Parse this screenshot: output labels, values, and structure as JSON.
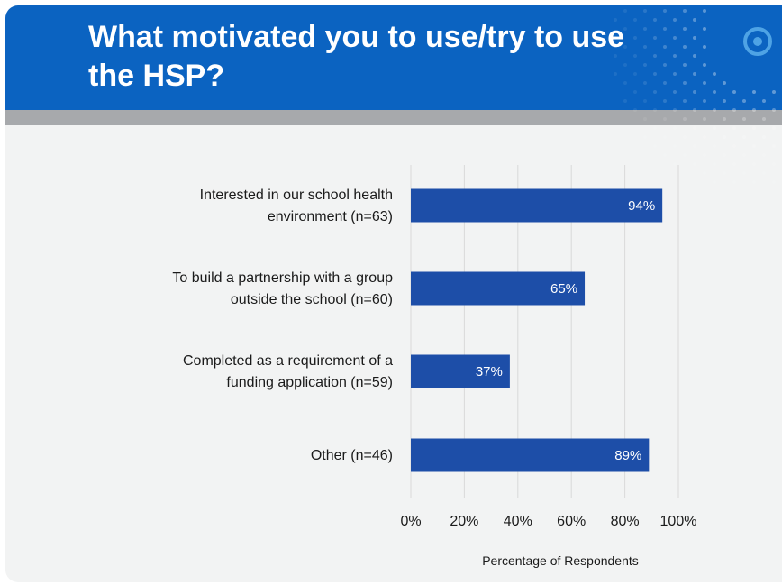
{
  "slide": {
    "title": "What motivated you to use/try to use the HSP?",
    "colors": {
      "header": "#0b63c1",
      "band": "#a7a9ac",
      "bar": "#1d4ea8",
      "background": "#f2f3f3"
    }
  },
  "chart_data": {
    "type": "bar",
    "orientation": "horizontal",
    "title": "",
    "xlabel": "Percentage of Respondents",
    "ylabel": "",
    "categories": [
      [
        "Interested in our school health",
        "environment (n=63)"
      ],
      [
        "To build a partnership with a group",
        "outside the school (n=60)"
      ],
      [
        "Completed as a requirement of a",
        "funding application (n=59)"
      ],
      [
        "Other (n=46)"
      ]
    ],
    "values": [
      94,
      65,
      37,
      89
    ],
    "value_labels": [
      "94%",
      "65%",
      "37%",
      "89%"
    ],
    "xlim": [
      0,
      100
    ],
    "ticks": [
      0,
      20,
      40,
      60,
      80,
      100
    ],
    "tick_labels": [
      "0%",
      "20%",
      "40%",
      "60%",
      "80%",
      "100%"
    ],
    "grid": true,
    "legend": "none",
    "bar_color": "#1d4ea8"
  }
}
